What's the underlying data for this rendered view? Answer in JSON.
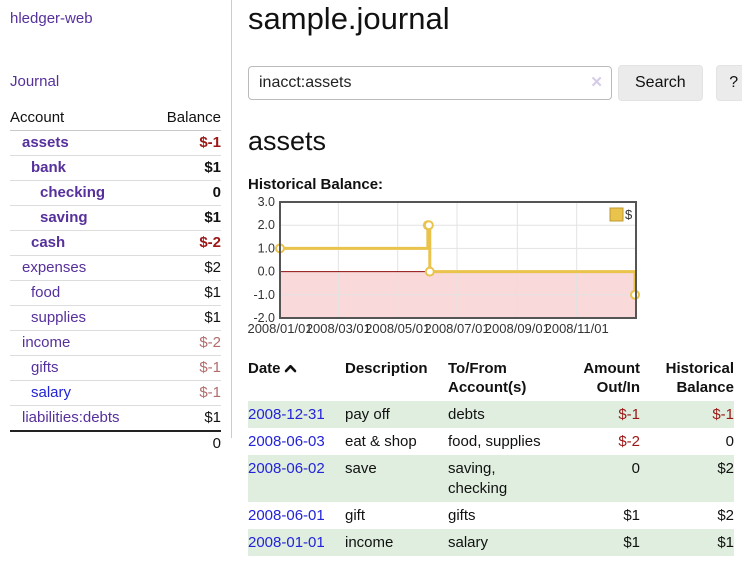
{
  "app": {
    "title": "hledger-web"
  },
  "colors": {
    "accent_purple": "#56309b",
    "link_blue": "#2323d8",
    "negative_strong": "#9c1717",
    "negative_soft": "#b16c6c",
    "row_green": "#dfeede"
  },
  "sidebar": {
    "journal_link": "Journal",
    "table": {
      "headers": {
        "account": "Account",
        "balance": "Balance"
      },
      "rows": [
        {
          "account": "assets",
          "balance": "$-1",
          "depth": 1,
          "bold": true,
          "neg": true,
          "blue": false
        },
        {
          "account": "bank",
          "balance": "$1",
          "depth": 2,
          "bold": true,
          "neg": false,
          "blue": false
        },
        {
          "account": "checking",
          "balance": "0",
          "depth": 3,
          "bold": true,
          "neg": false,
          "blue": false
        },
        {
          "account": "saving",
          "balance": "$1",
          "depth": 3,
          "bold": true,
          "neg": false,
          "blue": false
        },
        {
          "account": "cash",
          "balance": "$-2",
          "depth": 2,
          "bold": true,
          "neg": true,
          "blue": false
        },
        {
          "account": "expenses",
          "balance": "$2",
          "depth": 1,
          "bold": false,
          "neg": false,
          "blue": false
        },
        {
          "account": "food",
          "balance": "$1",
          "depth": 2,
          "bold": false,
          "neg": false,
          "blue": false
        },
        {
          "account": "supplies",
          "balance": "$1",
          "depth": 2,
          "bold": false,
          "neg": false,
          "blue": false
        },
        {
          "account": "income",
          "balance": "$-2",
          "depth": 1,
          "bold": false,
          "neg": true,
          "blue": false
        },
        {
          "account": "gifts",
          "balance": "$-1",
          "depth": 2,
          "bold": false,
          "neg": true,
          "blue": false
        },
        {
          "account": "salary",
          "balance": "$-1",
          "depth": 2,
          "bold": false,
          "neg": true,
          "blue": true
        },
        {
          "account": "liabilities:debts",
          "balance": "$1",
          "depth": 1,
          "bold": false,
          "neg": false,
          "blue": false
        }
      ],
      "total": "0"
    }
  },
  "main": {
    "title": "sample.journal",
    "search": {
      "value": "inacct:assets",
      "clear_icon": "✕",
      "button": "Search",
      "help_button": "?"
    },
    "account_heading": "assets",
    "chart_label": "Historical Balance:"
  },
  "chart_data": {
    "type": "line",
    "style": "step",
    "title": "Historical Balance",
    "legend": "$",
    "legend_position": "top-right",
    "x_range": [
      "2008-01-01",
      "2009-01-01"
    ],
    "x_ticks": [
      "2008/01/01",
      "2008/03/01",
      "2008/05/01",
      "2008/07/01",
      "2008/09/01",
      "2008/11/01"
    ],
    "y_ticks": [
      3.0,
      2.0,
      1.0,
      0.0,
      -1.0,
      -2.0
    ],
    "ylim": [
      -2.0,
      3.0
    ],
    "grid": true,
    "series": [
      {
        "name": "$",
        "color": "#e9c34b",
        "points": [
          [
            "2008-01-01",
            1
          ],
          [
            "2008-06-01",
            2
          ],
          [
            "2008-06-02",
            2
          ],
          [
            "2008-06-03",
            0
          ],
          [
            "2008-12-31",
            -1
          ]
        ]
      }
    ],
    "negative_region_color": "#f9d9d9",
    "zero_line_color": "#8f0c0c"
  },
  "register": {
    "headers": [
      {
        "label": "Date",
        "sort_icon": "chevron-up"
      },
      {
        "label": "Description"
      },
      {
        "label": "To/From Account(s)"
      },
      {
        "label": "Amount Out/In"
      },
      {
        "label": "Historical Balance"
      }
    ],
    "rows": [
      {
        "date": "2008-12-31",
        "description": "pay off",
        "accounts": "debts",
        "amount": "$-1",
        "balance": "$-1",
        "amount_neg": true,
        "balance_neg": true,
        "shade": true
      },
      {
        "date": "2008-06-03",
        "description": "eat & shop",
        "accounts": "food, supplies",
        "amount": "$-2",
        "balance": "0",
        "amount_neg": true,
        "balance_neg": false,
        "shade": false
      },
      {
        "date": "2008-06-02",
        "description": "save",
        "accounts": "saving, checking",
        "amount": "0",
        "balance": "$2",
        "amount_neg": false,
        "balance_neg": false,
        "shade": true
      },
      {
        "date": "2008-06-01",
        "description": "gift",
        "accounts": "gifts",
        "amount": "$1",
        "balance": "$2",
        "amount_neg": false,
        "balance_neg": false,
        "shade": false
      },
      {
        "date": "2008-01-01",
        "description": "income",
        "accounts": "salary",
        "amount": "$1",
        "balance": "$1",
        "amount_neg": false,
        "balance_neg": false,
        "shade": true
      }
    ]
  }
}
